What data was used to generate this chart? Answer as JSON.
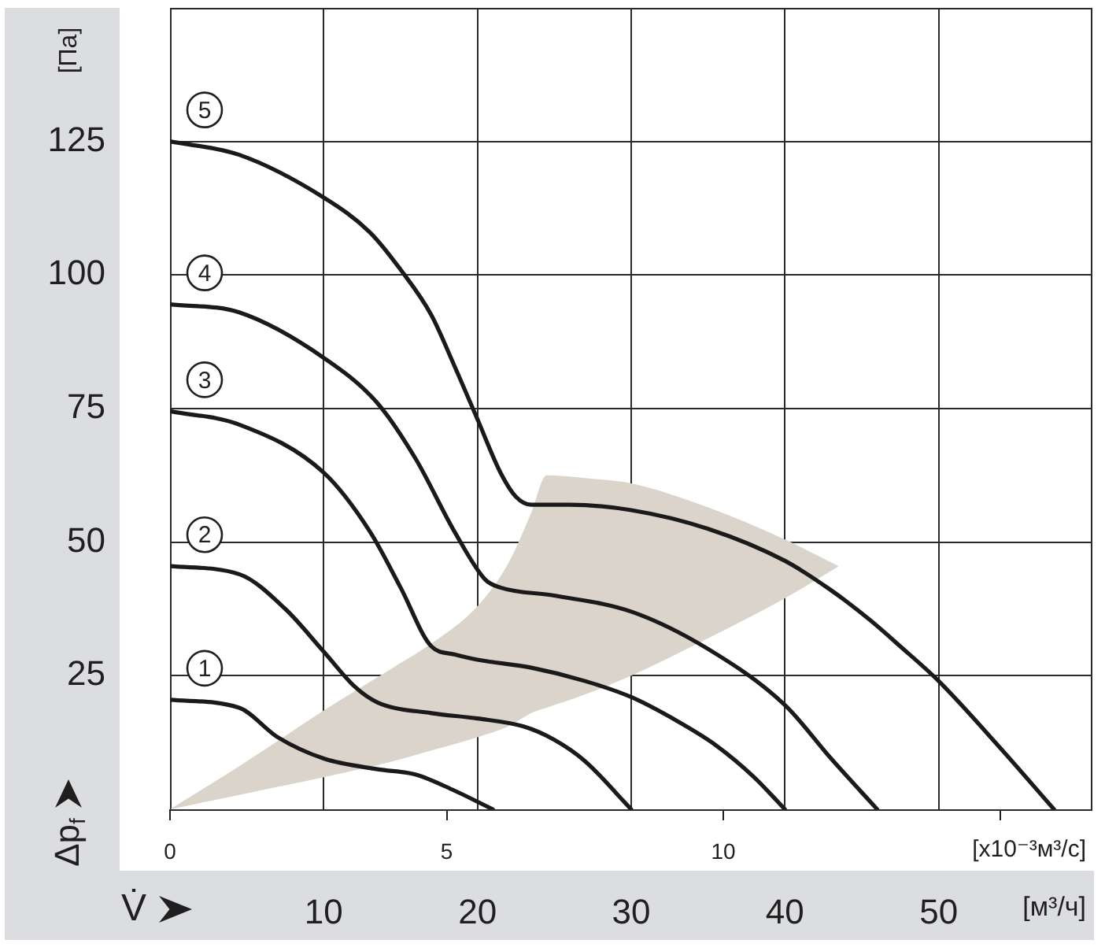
{
  "chart_data": {
    "type": "line",
    "xlabel": "[м³/ч]",
    "x2label": "[x10⁻³м³/с]",
    "ylabel": "[Па]",
    "annotations": [
      "Δp$_{f}$",
      "V̇"
    ],
    "xlim": [
      0,
      60
    ],
    "xticks": [
      10,
      20,
      30,
      40,
      50
    ],
    "x2lim": [
      0,
      16.67
    ],
    "x2ticks": [
      0,
      5,
      10,
      {
        "value": 15,
        "label": null
      }
    ],
    "ylim": [
      0,
      150
    ],
    "yticks": [
      25,
      50,
      75,
      100,
      125
    ],
    "grid": true,
    "series": [
      {
        "type": "line",
        "color": "#dbd4cb",
        "x": [
          0,
          5,
          10,
          14.5,
          17,
          20,
          22,
          23.5,
          24.5,
          27,
          30,
          35,
          40,
          43.5
        ],
        "values": [
          null,
          null,
          null,
          null,
          null,
          null,
          null,
          null,
          null,
          null,
          null,
          null,
          null,
          null
        ],
        "lower": [
          0,
          3,
          6,
          9,
          11,
          13.5,
          15.5,
          18,
          19,
          21.5,
          25,
          32,
          39.5,
          45.5
        ],
        "upper": [
          0,
          9,
          18.5,
          26.5,
          31,
          38,
          46,
          55.5,
          62.5,
          62,
          61,
          56.5,
          50.5,
          45.5
        ]
      },
      {
        "name": "1",
        "color": "#1a1a1a",
        "x": [
          0,
          4.5,
          7,
          10,
          13.5,
          16,
          18.5,
          21
        ],
        "values": [
          20.5,
          19,
          13.5,
          9.5,
          7.5,
          6.5,
          3.5,
          0
        ]
      },
      {
        "name": "2",
        "color": "#1a1a1a",
        "x": [
          0,
          4.5,
          7.5,
          10,
          12,
          13.5,
          17,
          20,
          23,
          25,
          27,
          30
        ],
        "values": [
          45.5,
          44,
          37.5,
          29.5,
          23,
          20,
          18,
          17,
          15.5,
          13,
          9,
          0
        ]
      },
      {
        "name": "3",
        "color": "#1a1a1a",
        "x": [
          0,
          4.5,
          10,
          13,
          15,
          17,
          18.5,
          20,
          23.5,
          27,
          30,
          33,
          35.5,
          38,
          40
        ],
        "values": [
          74.5,
          72,
          63,
          52,
          41.5,
          30.5,
          29,
          28,
          26.5,
          24,
          21,
          16.5,
          12,
          6,
          0
        ]
      },
      {
        "name": "4",
        "color": "#1a1a1a",
        "x": [
          0,
          4.5,
          10,
          13.5,
          16,
          18.5,
          20.5,
          21.5,
          25,
          30,
          35,
          40,
          43,
          46
        ],
        "values": [
          94.5,
          93,
          84.5,
          76,
          65.5,
          52,
          43,
          41.5,
          40,
          37,
          30,
          19.5,
          9.5,
          0
        ]
      },
      {
        "name": "5",
        "color": "#1a1a1a",
        "x": [
          0,
          4.5,
          10,
          13,
          15,
          17,
          18.5,
          20,
          21.5,
          22.5,
          23.5,
          26,
          30,
          35,
          40,
          43,
          45.5,
          47.5,
          50,
          54,
          57.5
        ],
        "values": [
          125,
          122.5,
          114.5,
          108,
          101,
          92.5,
          83,
          73,
          63,
          58.5,
          57,
          57,
          56,
          52.5,
          46.5,
          41,
          35.5,
          30.5,
          24,
          11.5,
          0
        ]
      }
    ]
  }
}
